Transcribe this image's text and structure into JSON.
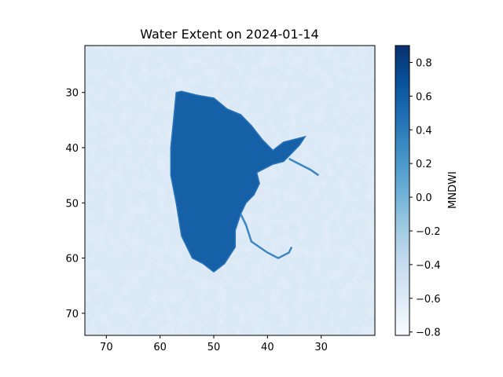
{
  "chart_data": {
    "type": "heatmap",
    "title": "Water Extent on 2024-01-14",
    "x_ticks": [
      70,
      60,
      50,
      40,
      30
    ],
    "x_range": [
      74,
      20
    ],
    "y_ticks": [
      30,
      40,
      50,
      60,
      70
    ],
    "y_range": [
      21.5,
      74
    ],
    "colorbar": {
      "label": "MNDWI",
      "range": [
        -0.82,
        0.9
      ],
      "ticks": [
        0.8,
        0.6,
        0.4,
        0.2,
        0.0,
        -0.2,
        -0.4,
        -0.6,
        -0.8
      ],
      "tick_labels": [
        "0.8",
        "0.6",
        "0.4",
        "0.2",
        "0.0",
        "−0.2",
        "−0.4",
        "−0.6",
        "−0.8"
      ],
      "colormap": "Blues",
      "stops": [
        "#f7fbff",
        "#deebf7",
        "#c6dbef",
        "#9ecae1",
        "#6baed6",
        "#4292c6",
        "#2171b5",
        "#08519c",
        "#08306b"
      ]
    },
    "water_polygon": [
      [
        57,
        30
      ],
      [
        56,
        29.8
      ],
      [
        53,
        30.5
      ],
      [
        50,
        31
      ],
      [
        47.5,
        33
      ],
      [
        45,
        34
      ],
      [
        43,
        36
      ],
      [
        41,
        38.5
      ],
      [
        39,
        40.5
      ],
      [
        37,
        39
      ],
      [
        35,
        38.5
      ],
      [
        33,
        38
      ],
      [
        34,
        39.5
      ],
      [
        35.5,
        41
      ],
      [
        37,
        42.5
      ],
      [
        39,
        43
      ],
      [
        42,
        44.5
      ],
      [
        41.5,
        46.5
      ],
      [
        42.5,
        48.5
      ],
      [
        44,
        50
      ],
      [
        45,
        52
      ],
      [
        46,
        55
      ],
      [
        46,
        58
      ],
      [
        48,
        61
      ],
      [
        50,
        62.5
      ],
      [
        52,
        61
      ],
      [
        54,
        60
      ],
      [
        56,
        56
      ],
      [
        57,
        50
      ],
      [
        58,
        45
      ],
      [
        58,
        40
      ],
      [
        57.5,
        35
      ]
    ],
    "river_path": [
      [
        45,
        52
      ],
      [
        44,
        54
      ],
      [
        43,
        57
      ],
      [
        40,
        59
      ],
      [
        38,
        60
      ],
      [
        36,
        59
      ],
      [
        35.5,
        58
      ]
    ],
    "inlet_path": [
      [
        36,
        42
      ],
      [
        34,
        43
      ],
      [
        32,
        44
      ],
      [
        30.5,
        45
      ]
    ]
  }
}
